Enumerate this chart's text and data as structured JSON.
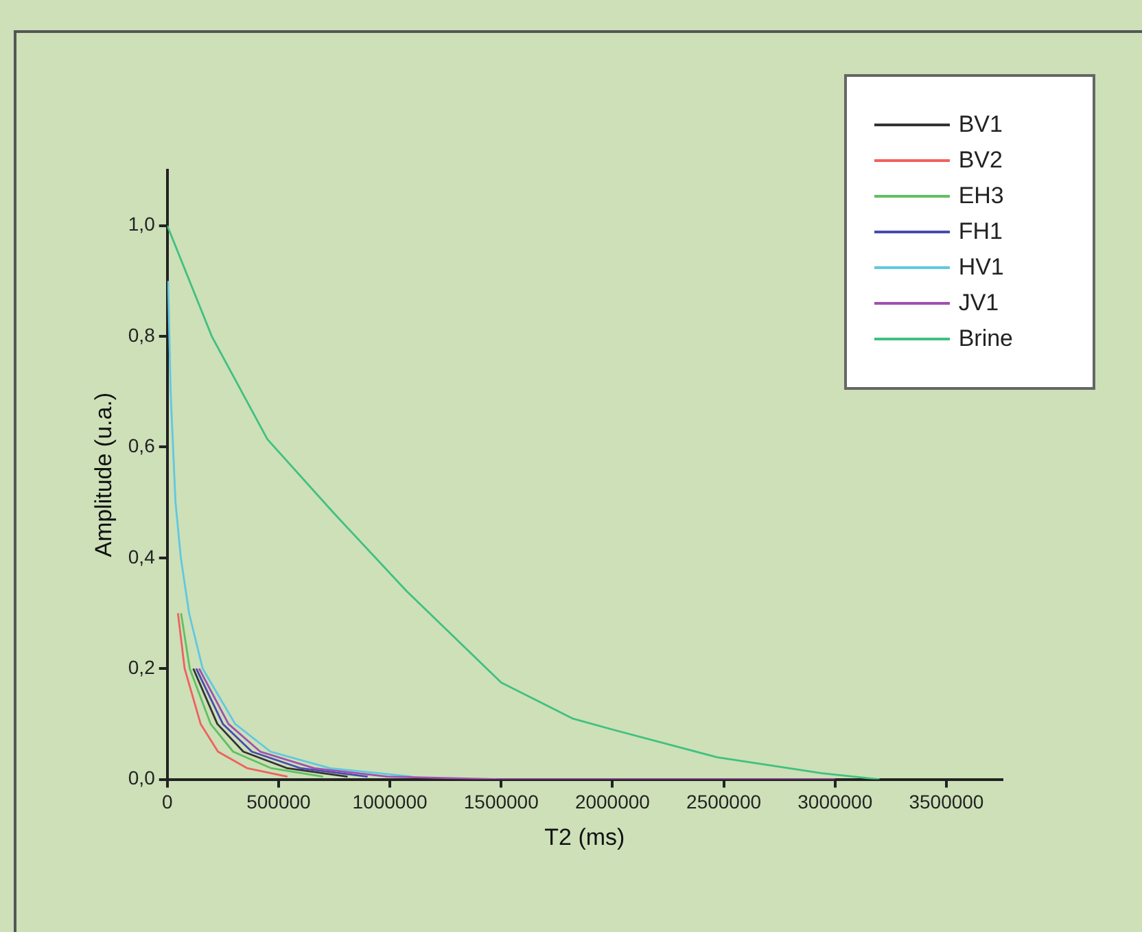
{
  "chart_data": {
    "type": "line",
    "xlabel": "T2 (ms)",
    "ylabel": "Amplitude (u.a.)",
    "xlim": [
      0,
      3750000
    ],
    "xticks": [
      0,
      500000,
      1000000,
      1500000,
      2000000,
      2500000,
      3000000,
      3500000
    ],
    "ylim": [
      0,
      1.1
    ],
    "yticks": [
      {
        "value": 0,
        "label": "0,0"
      },
      {
        "value": 0.2,
        "label": "0,2"
      },
      {
        "value": 0.4,
        "label": "0,4"
      },
      {
        "value": 0.6,
        "label": "0,6"
      },
      {
        "value": 0.8,
        "label": "0,8"
      },
      {
        "value": 1,
        "label": "1,0"
      }
    ],
    "grid": false,
    "legend": "top right",
    "marker": "none",
    "line_style": "solid",
    "series": [
      {
        "name": "BV1",
        "color": "#333333",
        "x": [
          117000,
          225000,
          342000,
          540000,
          810000
        ],
        "values": [
          0.2,
          0.1,
          0.05,
          0.02,
          0.005
        ]
      },
      {
        "name": "BV2",
        "color": "#f06060",
        "x": [
          48000,
          78000,
          150000,
          228000,
          360000,
          540000
        ],
        "values": [
          0.3,
          0.2,
          0.1,
          0.05,
          0.02,
          0.005
        ]
      },
      {
        "name": "EH3",
        "color": "#60c060",
        "x": [
          62000,
          101000,
          195000,
          296000,
          468000,
          700000
        ],
        "values": [
          0.3,
          0.2,
          0.1,
          0.05,
          0.02,
          0.005
        ]
      },
      {
        "name": "FH1",
        "color": "#4a4ab0",
        "x": [
          130000,
          250000,
          380000,
          600000,
          900000
        ],
        "values": [
          0.2,
          0.1,
          0.05,
          0.02,
          0.005
        ]
      },
      {
        "name": "HV1",
        "color": "#60c8e0",
        "x": [
          4000,
          15000,
          37000,
          61000,
          98000,
          159000,
          305000,
          464000,
          732000,
          1100000
        ],
        "values": [
          0.9,
          0.7,
          0.5,
          0.4,
          0.3,
          0.2,
          0.1,
          0.05,
          0.02,
          0.005
        ]
      },
      {
        "name": "JV1",
        "color": "#a050b0",
        "x": [
          143000,
          275000,
          418000,
          660000,
          990000,
          1500000,
          3000000
        ],
        "values": [
          0.2,
          0.1,
          0.05,
          0.02,
          0.005,
          0,
          0
        ]
      },
      {
        "name": "Brine",
        "color": "#40c080",
        "x": [
          0,
          200000,
          450000,
          750000,
          1075000,
          1500000,
          1820000,
          2000000,
          2470000,
          2940000,
          3200000
        ],
        "values": [
          1,
          0.8,
          0.614,
          0.48,
          0.34,
          0.175,
          0.11,
          0.09,
          0.04,
          0.011,
          0
        ]
      }
    ]
  }
}
